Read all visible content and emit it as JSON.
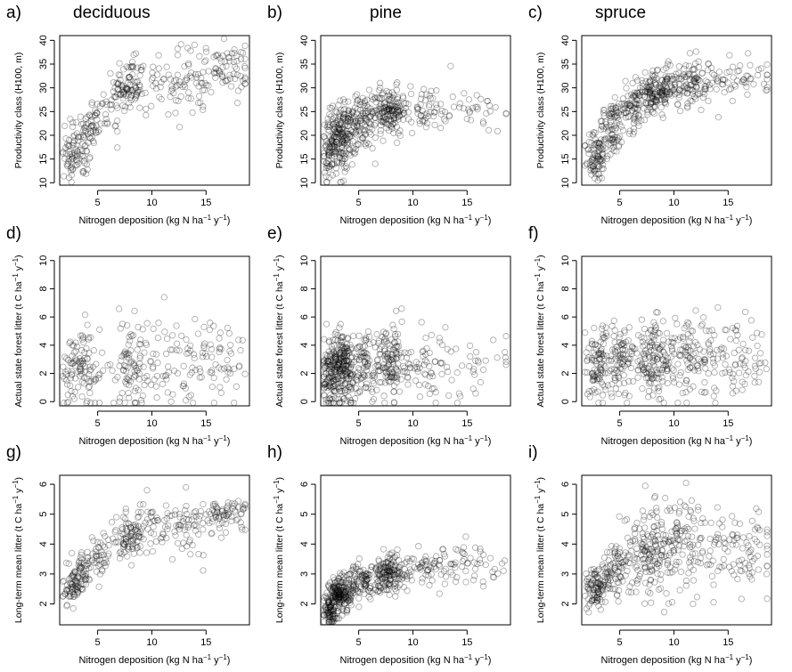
{
  "chart_data": [
    {
      "id": "a",
      "type": "scatter",
      "panel_letter": "a)",
      "title": "deciduous",
      "xlabel": "Nitrogen deposition (kg N ha^-1 y^-1)",
      "ylabel": "Productivity class (H100, m)",
      "xlim": [
        1.5,
        19
      ],
      "ylim": [
        9.5,
        41
      ],
      "xticks": [
        "5",
        "10",
        "15"
      ],
      "yticks": [
        "10",
        "15",
        "20",
        "25",
        "30",
        "35",
        "40"
      ],
      "xtick_values": [
        5,
        10,
        15
      ],
      "ytick_values": [
        10,
        15,
        20,
        25,
        30,
        35,
        40
      ],
      "points": [
        {
          "x": 2.4,
          "y": 15,
          "n": 35,
          "sx": 0.6,
          "sy": 3
        },
        {
          "x": 3.5,
          "y": 18,
          "n": 60,
          "sx": 0.6,
          "sy": 3.5
        },
        {
          "x": 4.5,
          "y": 22,
          "n": 35,
          "sx": 0.5,
          "sy": 3
        },
        {
          "x": 6.2,
          "y": 26,
          "n": 25,
          "sx": 0.8,
          "sy": 3
        },
        {
          "x": 7.9,
          "y": 30,
          "n": 80,
          "sx": 0.7,
          "sy": 3
        },
        {
          "x": 10.5,
          "y": 31,
          "n": 55,
          "sx": 1.6,
          "sy": 3.5
        },
        {
          "x": 13.6,
          "y": 31,
          "n": 40,
          "sx": 1.4,
          "sy": 4
        },
        {
          "x": 16.8,
          "y": 34,
          "n": 70,
          "sx": 1.2,
          "sy": 2.5
        }
      ]
    },
    {
      "id": "b",
      "type": "scatter",
      "panel_letter": "b)",
      "title": "pine",
      "xlabel": "Nitrogen deposition (kg N ha^-1 y^-1)",
      "ylabel": "Productivity class (H100, m)",
      "xlim": [
        1.5,
        19
      ],
      "ylim": [
        9.5,
        41
      ],
      "xticks": [
        "5",
        "10",
        "15"
      ],
      "yticks": [
        "10",
        "15",
        "20",
        "25",
        "30",
        "35",
        "40"
      ],
      "xtick_values": [
        5,
        10,
        15
      ],
      "ytick_values": [
        10,
        15,
        20,
        25,
        30,
        35,
        40
      ],
      "points": [
        {
          "x": 2.5,
          "y": 17,
          "n": 90,
          "sx": 0.5,
          "sy": 3.5
        },
        {
          "x": 3.6,
          "y": 20,
          "n": 160,
          "sx": 0.6,
          "sy": 3.5
        },
        {
          "x": 5.3,
          "y": 23,
          "n": 100,
          "sx": 0.9,
          "sy": 3
        },
        {
          "x": 7.8,
          "y": 25,
          "n": 140,
          "sx": 0.8,
          "sy": 2.5
        },
        {
          "x": 11.0,
          "y": 26,
          "n": 60,
          "sx": 1.5,
          "sy": 2.5
        },
        {
          "x": 15.5,
          "y": 25,
          "n": 35,
          "sx": 1.6,
          "sy": 2.2
        }
      ]
    },
    {
      "id": "c",
      "type": "scatter",
      "panel_letter": "c)",
      "title": "spruce",
      "xlabel": "Nitrogen deposition (kg N ha^-1 y^-1)",
      "ylabel": "Productivity class (H100, m)",
      "xlim": [
        1.5,
        19
      ],
      "ylim": [
        9.5,
        41
      ],
      "xticks": [
        "5",
        "10",
        "15"
      ],
      "yticks": [
        "10",
        "15",
        "20",
        "25",
        "30",
        "35",
        "40"
      ],
      "xtick_values": [
        5,
        10,
        15
      ],
      "ytick_values": [
        10,
        15,
        20,
        25,
        30,
        35,
        40
      ],
      "points": [
        {
          "x": 2.8,
          "y": 15,
          "n": 80,
          "sx": 0.5,
          "sy": 2.5
        },
        {
          "x": 4.2,
          "y": 21,
          "n": 80,
          "sx": 0.6,
          "sy": 2.8
        },
        {
          "x": 6.0,
          "y": 26,
          "n": 80,
          "sx": 0.8,
          "sy": 2.5
        },
        {
          "x": 8.3,
          "y": 29,
          "n": 150,
          "sx": 0.9,
          "sy": 2
        },
        {
          "x": 11.2,
          "y": 31,
          "n": 120,
          "sx": 1.4,
          "sy": 2.5
        },
        {
          "x": 15.8,
          "y": 32,
          "n": 60,
          "sx": 1.8,
          "sy": 2.2
        }
      ]
    },
    {
      "id": "d",
      "type": "scatter",
      "panel_letter": "d)",
      "title": "",
      "xlabel": "Nitrogen deposition (kg N ha^-1 y^-1)",
      "ylabel": "Actual state forest litter (t C ha^-1 y^-1)",
      "xlim": [
        1.5,
        19
      ],
      "ylim": [
        -0.3,
        10.3
      ],
      "xticks": [
        "5",
        "10",
        "15"
      ],
      "yticks": [
        "0",
        "2",
        "4",
        "6",
        "8",
        "10"
      ],
      "xtick_values": [
        5,
        10,
        15
      ],
      "ytick_values": [
        0,
        2,
        4,
        6,
        8,
        10
      ],
      "points": [
        {
          "x": 3.0,
          "y": 2.2,
          "n": 70,
          "sx": 0.7,
          "sy": 1.3
        },
        {
          "x": 4.4,
          "y": 2.6,
          "n": 40,
          "sx": 0.6,
          "sy": 1.5
        },
        {
          "x": 7.9,
          "y": 2.6,
          "n": 80,
          "sx": 0.8,
          "sy": 1.6
        },
        {
          "x": 11.0,
          "y": 2.8,
          "n": 60,
          "sx": 1.5,
          "sy": 1.6
        },
        {
          "x": 15.5,
          "y": 3.0,
          "n": 70,
          "sx": 1.6,
          "sy": 1.7
        }
      ]
    },
    {
      "id": "e",
      "type": "scatter",
      "panel_letter": "e)",
      "title": "",
      "xlabel": "Nitrogen deposition (kg N ha^-1 y^-1)",
      "ylabel": "Actual state forest litter (t C ha^-1 y^-1)",
      "xlim": [
        1.5,
        19
      ],
      "ylim": [
        -0.3,
        10.3
      ],
      "xticks": [
        "5",
        "10",
        "15"
      ],
      "yticks": [
        "0",
        "2",
        "4",
        "6",
        "8",
        "10"
      ],
      "xtick_values": [
        5,
        10,
        15
      ],
      "ytick_values": [
        0,
        2,
        4,
        6,
        8,
        10
      ],
      "points": [
        {
          "x": 2.6,
          "y": 2.2,
          "n": 140,
          "sx": 0.5,
          "sy": 1.2
        },
        {
          "x": 3.6,
          "y": 2.4,
          "n": 160,
          "sx": 0.6,
          "sy": 1.3
        },
        {
          "x": 5.4,
          "y": 2.6,
          "n": 90,
          "sx": 0.9,
          "sy": 1.3
        },
        {
          "x": 7.9,
          "y": 2.8,
          "n": 130,
          "sx": 0.8,
          "sy": 1.3
        },
        {
          "x": 11.5,
          "y": 2.5,
          "n": 60,
          "sx": 1.6,
          "sy": 1.2
        },
        {
          "x": 15.5,
          "y": 2.4,
          "n": 30,
          "sx": 1.6,
          "sy": 1.2
        }
      ]
    },
    {
      "id": "f",
      "type": "scatter",
      "panel_letter": "f)",
      "title": "",
      "xlabel": "Nitrogen deposition (kg N ha^-1 y^-1)",
      "ylabel": "Actual state forest litter (t C ha^-1 y^-1)",
      "xlim": [
        1.5,
        19
      ],
      "ylim": [
        -0.3,
        10.3
      ],
      "xticks": [
        "5",
        "10",
        "15"
      ],
      "yticks": [
        "0",
        "2",
        "4",
        "6",
        "8",
        "10"
      ],
      "xtick_values": [
        5,
        10,
        15
      ],
      "ytick_values": [
        0,
        2,
        4,
        6,
        8,
        10
      ],
      "points": [
        {
          "x": 3.0,
          "y": 2.6,
          "n": 100,
          "sx": 0.7,
          "sy": 1.3
        },
        {
          "x": 5.2,
          "y": 3.0,
          "n": 90,
          "sx": 0.9,
          "sy": 1.3
        },
        {
          "x": 8.2,
          "y": 3.0,
          "n": 140,
          "sx": 1.0,
          "sy": 1.3
        },
        {
          "x": 11.5,
          "y": 3.0,
          "n": 110,
          "sx": 1.4,
          "sy": 1.3
        },
        {
          "x": 16.0,
          "y": 2.8,
          "n": 70,
          "sx": 1.6,
          "sy": 1.2
        }
      ]
    },
    {
      "id": "g",
      "type": "scatter",
      "panel_letter": "g)",
      "title": "",
      "xlabel": "Nitrogen deposition (kg N ha^-1 y^-1)",
      "ylabel": "Long-term mean litter (t C ha^-1 y^-1)",
      "xlim": [
        1.5,
        19
      ],
      "ylim": [
        1.3,
        6.3
      ],
      "xticks": [
        "5",
        "10",
        "15"
      ],
      "yticks": [
        "2",
        "3",
        "4",
        "5",
        "6"
      ],
      "xtick_values": [
        5,
        10,
        15
      ],
      "ytick_values": [
        2,
        3,
        4,
        5,
        6
      ],
      "points": [
        {
          "x": 2.6,
          "y": 2.5,
          "n": 50,
          "sx": 0.4,
          "sy": 0.25
        },
        {
          "x": 3.6,
          "y": 3.0,
          "n": 60,
          "sx": 0.5,
          "sy": 0.3
        },
        {
          "x": 5.0,
          "y": 3.6,
          "n": 40,
          "sx": 0.6,
          "sy": 0.3
        },
        {
          "x": 7.8,
          "y": 4.2,
          "n": 90,
          "sx": 0.8,
          "sy": 0.35
        },
        {
          "x": 10.8,
          "y": 4.6,
          "n": 60,
          "sx": 1.4,
          "sy": 0.4
        },
        {
          "x": 13.5,
          "y": 4.7,
          "n": 40,
          "sx": 1.2,
          "sy": 0.45
        },
        {
          "x": 16.8,
          "y": 5.0,
          "n": 70,
          "sx": 1.1,
          "sy": 0.25
        }
      ]
    },
    {
      "id": "h",
      "type": "scatter",
      "panel_letter": "h)",
      "title": "",
      "xlabel": "Nitrogen deposition (kg N ha^-1 y^-1)",
      "ylabel": "Long-term mean litter (t C ha^-1 y^-1)",
      "xlim": [
        1.5,
        19
      ],
      "ylim": [
        1.3,
        6.3
      ],
      "xticks": [
        "5",
        "10",
        "15"
      ],
      "yticks": [
        "2",
        "3",
        "4",
        "5",
        "6"
      ],
      "xtick_values": [
        5,
        10,
        15
      ],
      "ytick_values": [
        2,
        3,
        4,
        5,
        6
      ],
      "points": [
        {
          "x": 2.3,
          "y": 1.8,
          "n": 80,
          "sx": 0.35,
          "sy": 0.25
        },
        {
          "x": 3.3,
          "y": 2.3,
          "n": 170,
          "sx": 0.5,
          "sy": 0.3
        },
        {
          "x": 5.2,
          "y": 2.7,
          "n": 110,
          "sx": 0.9,
          "sy": 0.3
        },
        {
          "x": 7.8,
          "y": 3.0,
          "n": 150,
          "sx": 0.8,
          "sy": 0.3
        },
        {
          "x": 11.5,
          "y": 3.2,
          "n": 70,
          "sx": 1.6,
          "sy": 0.3
        },
        {
          "x": 15.8,
          "y": 3.3,
          "n": 40,
          "sx": 1.6,
          "sy": 0.35
        }
      ]
    },
    {
      "id": "i",
      "type": "scatter",
      "panel_letter": "i)",
      "title": "",
      "xlabel": "Nitrogen deposition (kg N ha^-1 y^-1)",
      "ylabel": "Long-term mean litter (t C ha^-1 y^-1)",
      "xlim": [
        1.5,
        19
      ],
      "ylim": [
        1.3,
        6.3
      ],
      "xticks": [
        "5",
        "10",
        "15"
      ],
      "yticks": [
        "2",
        "3",
        "4",
        "5",
        "6"
      ],
      "xtick_values": [
        5,
        10,
        15
      ],
      "ytick_values": [
        2,
        3,
        4,
        5,
        6
      ],
      "points": [
        {
          "x": 2.8,
          "y": 2.5,
          "n": 90,
          "sx": 0.5,
          "sy": 0.35
        },
        {
          "x": 4.5,
          "y": 3.1,
          "n": 80,
          "sx": 0.7,
          "sy": 0.45
        },
        {
          "x": 7.5,
          "y": 3.8,
          "n": 140,
          "sx": 1.0,
          "sy": 0.7
        },
        {
          "x": 10.8,
          "y": 4.1,
          "n": 130,
          "sx": 1.5,
          "sy": 0.75
        },
        {
          "x": 16.0,
          "y": 3.8,
          "n": 90,
          "sx": 1.6,
          "sy": 0.6
        }
      ]
    }
  ]
}
